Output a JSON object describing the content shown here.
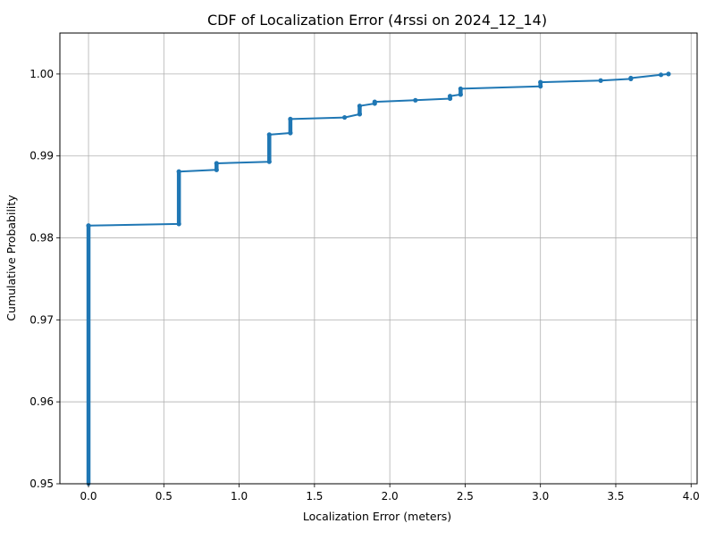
{
  "chart_data": {
    "type": "line",
    "title": "CDF of Localization Error (4rssi on 2024_12_14)",
    "xlabel": "Localization Error (meters)",
    "ylabel": "Cumulative Probability",
    "xlim": [
      -0.19,
      4.04
    ],
    "ylim": [
      0.95,
      1.005
    ],
    "xticks": [
      0.0,
      0.5,
      1.0,
      1.5,
      2.0,
      2.5,
      3.0,
      3.5,
      4.0
    ],
    "xtick_labels": [
      "0.0",
      "0.5",
      "1.0",
      "1.5",
      "2.0",
      "2.5",
      "3.0",
      "3.5",
      "4.0"
    ],
    "yticks": [
      0.95,
      0.96,
      0.97,
      0.98,
      0.99,
      1.0
    ],
    "ytick_labels": [
      "0.95",
      "0.96",
      "0.97",
      "0.98",
      "0.99",
      "1.00"
    ],
    "grid": true,
    "line_color": "#1f77b4",
    "series": [
      {
        "marker": "dot",
        "points": [
          {
            "x": 0.0,
            "y": 0.95
          },
          {
            "x": 0.0,
            "y": 0.9815
          },
          {
            "x": 0.6,
            "y": 0.9817
          },
          {
            "x": 0.6,
            "y": 0.9881
          },
          {
            "x": 0.85,
            "y": 0.9883
          },
          {
            "x": 0.85,
            "y": 0.9891
          },
          {
            "x": 1.2,
            "y": 0.9893
          },
          {
            "x": 1.2,
            "y": 0.9926
          },
          {
            "x": 1.34,
            "y": 0.9928
          },
          {
            "x": 1.34,
            "y": 0.9945
          },
          {
            "x": 1.7,
            "y": 0.9947
          },
          {
            "x": 1.8,
            "y": 0.9951
          },
          {
            "x": 1.8,
            "y": 0.9961
          },
          {
            "x": 1.9,
            "y": 0.9964
          },
          {
            "x": 1.9,
            "y": 0.9966
          },
          {
            "x": 2.17,
            "y": 0.9968
          },
          {
            "x": 2.4,
            "y": 0.997
          },
          {
            "x": 2.4,
            "y": 0.9973
          },
          {
            "x": 2.47,
            "y": 0.9975
          },
          {
            "x": 2.47,
            "y": 0.9982
          },
          {
            "x": 3.0,
            "y": 0.9985
          },
          {
            "x": 3.0,
            "y": 0.999
          },
          {
            "x": 3.4,
            "y": 0.9992
          },
          {
            "x": 3.6,
            "y": 0.9994
          },
          {
            "x": 3.6,
            "y": 0.9995
          },
          {
            "x": 3.8,
            "y": 0.9999
          },
          {
            "x": 3.85,
            "y": 1.0
          }
        ]
      }
    ]
  }
}
